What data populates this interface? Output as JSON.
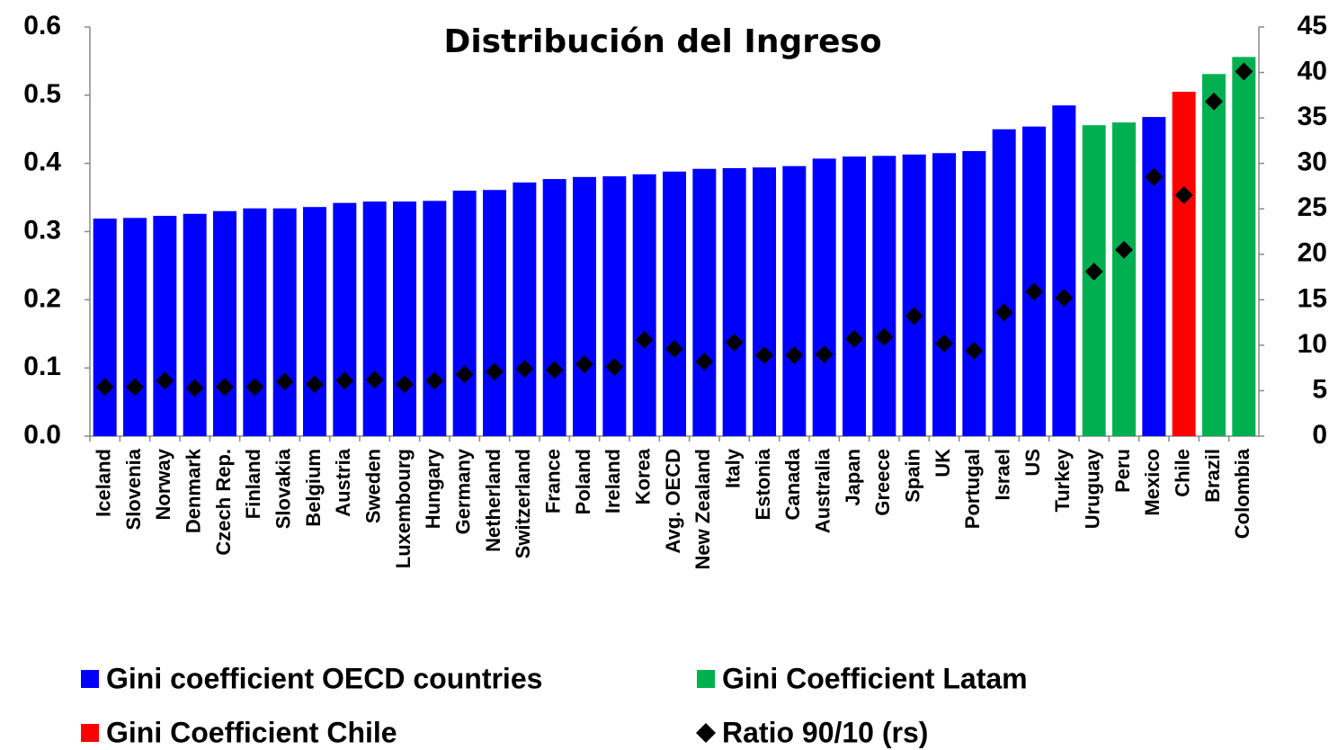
{
  "chart_data": {
    "type": "bar",
    "title": "Distribución del Ingreso",
    "categories": [
      "Iceland",
      "Slovenia",
      "Norway",
      "Denmark",
      "Czech Rep.",
      "Finland",
      "Slovakia",
      "Belgium",
      "Austria",
      "Sweden",
      "Luxembourg",
      "Hungary",
      "Germany",
      "Netherland",
      "Switzerland",
      "France",
      "Poland",
      "Ireland",
      "Korea",
      "Avg. OECD",
      "New Zealand",
      "Italy",
      "Estonia",
      "Canada",
      "Australia",
      "Japan",
      "Greece",
      "Spain",
      "UK",
      "Portugal",
      "Israel",
      "US",
      "Turkey",
      "Uruguay",
      "Peru",
      "Mexico",
      "Chile",
      "Brazil",
      "Colombia"
    ],
    "series": [
      {
        "name": "Gini coefficient OECD countries",
        "color": "#0000ff",
        "type": "bar",
        "values": [
          0.319,
          0.32,
          0.323,
          0.326,
          0.33,
          0.334,
          0.334,
          0.336,
          0.342,
          0.344,
          0.344,
          0.345,
          0.36,
          0.361,
          0.372,
          0.377,
          0.38,
          0.381,
          0.384,
          0.388,
          0.392,
          0.393,
          0.394,
          0.396,
          0.407,
          0.41,
          0.411,
          0.413,
          0.415,
          0.418,
          0.45,
          0.454,
          0.485,
          null,
          null,
          0.468,
          null,
          null,
          null
        ]
      },
      {
        "name": "Gini Coefficient Latam",
        "color": "#00b050",
        "type": "bar",
        "values": [
          null,
          null,
          null,
          null,
          null,
          null,
          null,
          null,
          null,
          null,
          null,
          null,
          null,
          null,
          null,
          null,
          null,
          null,
          null,
          null,
          null,
          null,
          null,
          null,
          null,
          null,
          null,
          null,
          null,
          null,
          null,
          null,
          null,
          0.456,
          0.46,
          null,
          null,
          0.531,
          0.556
        ]
      },
      {
        "name": "Gini Coefficient Chile",
        "color": "#ff0000",
        "type": "bar",
        "values": [
          null,
          null,
          null,
          null,
          null,
          null,
          null,
          null,
          null,
          null,
          null,
          null,
          null,
          null,
          null,
          null,
          null,
          null,
          null,
          null,
          null,
          null,
          null,
          null,
          null,
          null,
          null,
          null,
          null,
          null,
          null,
          null,
          null,
          null,
          null,
          null,
          0.505,
          null,
          null
        ]
      },
      {
        "name": "Ratio 90/10 (rs)",
        "color": "#000000",
        "type": "scatter",
        "axis": "y2",
        "values": [
          5.4,
          5.4,
          6.1,
          5.3,
          5.4,
          5.4,
          6.0,
          5.7,
          6.1,
          6.2,
          5.7,
          6.1,
          6.8,
          7.1,
          7.4,
          7.3,
          7.9,
          7.6,
          10.6,
          9.6,
          8.2,
          10.3,
          8.9,
          8.9,
          9.0,
          10.7,
          10.9,
          13.2,
          10.2,
          9.4,
          13.6,
          15.9,
          15.2,
          18.1,
          20.5,
          28.5,
          26.5,
          36.8,
          40.1
        ]
      }
    ],
    "ylim": [
      0,
      0.6
    ],
    "yticks": [
      {
        "value": 0,
        "label": "0.0"
      },
      0.1,
      0.2,
      0.3,
      0.4,
      0.5,
      0.6
    ],
    "y2lim": [
      0,
      45
    ],
    "y2ticks": [
      0,
      5,
      10,
      15,
      20,
      25,
      30,
      35,
      40,
      45
    ],
    "legend": "bottom"
  }
}
